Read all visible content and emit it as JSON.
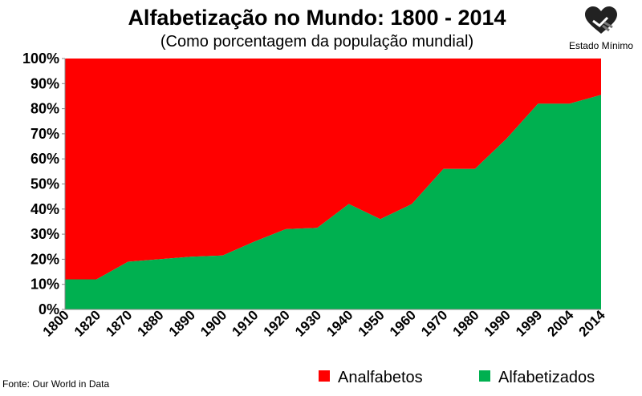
{
  "chart_data": {
    "type": "area",
    "title": "Alfabetização no Mundo: 1800 - 2014",
    "subtitle": "(Como porcentagem da população mundial)",
    "categories": [
      "1800",
      "1820",
      "1870",
      "1880",
      "1890",
      "1900",
      "1910",
      "1920",
      "1930",
      "1940",
      "1950",
      "1960",
      "1970",
      "1980",
      "1990",
      "1999",
      "2004",
      "2014"
    ],
    "series": [
      {
        "name": "Alfabetizados",
        "color": "#00b050",
        "values": [
          12,
          12,
          19,
          20,
          21,
          21.5,
          27,
          32,
          32.5,
          42,
          36,
          42,
          56,
          56,
          68,
          82,
          82,
          85.5
        ]
      },
      {
        "name": "Analfabetos",
        "color": "#ff0000",
        "values": [
          88,
          88,
          81,
          80,
          79,
          78.5,
          73,
          68,
          67.5,
          58,
          64,
          58,
          44,
          44,
          32,
          18,
          18,
          14.5
        ]
      }
    ],
    "stacked": true,
    "ylim": [
      0,
      100
    ],
    "yticks": [
      "0%",
      "10%",
      "20%",
      "30%",
      "40%",
      "50%",
      "60%",
      "70%",
      "80%",
      "90%",
      "100%"
    ],
    "legend": {
      "position": "bottom-right",
      "items": [
        {
          "label": "Analfabetos",
          "color": "#ff0000"
        },
        {
          "label": "Alfabetizados",
          "color": "#00b050"
        }
      ]
    },
    "source": "Fonte: Our World in Data"
  },
  "logo": {
    "text": "Estado Mínimo",
    "icon": "heart-hands-icon"
  }
}
